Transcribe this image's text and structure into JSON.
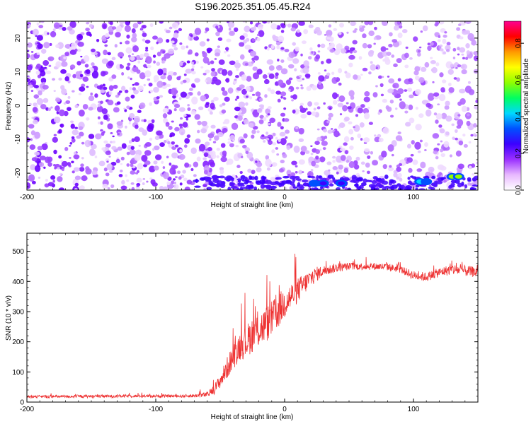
{
  "figure": {
    "title": "S196.2025.351.05.45.R24"
  },
  "chart_data": [
    {
      "type": "heatmap",
      "xlabel": "Height of straight line (km)",
      "ylabel": "Frequency (Hz)",
      "xlim": [
        -200,
        150
      ],
      "ylim": [
        -25,
        25
      ],
      "x_ticks": [
        -200,
        -100,
        0,
        100
      ],
      "y_ticks": [
        -20,
        -10,
        0,
        10,
        20
      ],
      "colorbar": {
        "label": "Normalized spectral amplitude",
        "range": [
          0,
          0.92
        ],
        "ticks": [
          0.0,
          0.2,
          0.4,
          0.6,
          0.8
        ],
        "tick_labels": [
          "0.0",
          "0.2",
          "0.4",
          "0.6",
          "0.8"
        ],
        "colormap": [
          "#ffffff",
          "#e8b8ff",
          "#9a30ff",
          "#3c00ff",
          "#0050ff",
          "#00d8ff",
          "#00ff60",
          "#90ff00",
          "#ffff00",
          "#ff9900",
          "#ff0000",
          "#ff0090"
        ]
      },
      "hotspots": [
        {
          "x": 23,
          "y": -23,
          "value": 0.3
        },
        {
          "x": 30,
          "y": -23,
          "value": 0.25
        },
        {
          "x": 44,
          "y": -23,
          "value": 0.22
        },
        {
          "x": 105,
          "y": -22.5,
          "value": 0.45
        },
        {
          "x": 110,
          "y": -22.5,
          "value": 0.35
        },
        {
          "x": 130,
          "y": -21,
          "value": 0.62
        },
        {
          "x": 135,
          "y": -21,
          "value": 0.55
        }
      ]
    },
    {
      "type": "line",
      "xlabel": "Height of straight line (km)",
      "ylabel": "SNR (10 * v/v)",
      "xlim": [
        -200,
        150
      ],
      "ylim": [
        0,
        560
      ],
      "x_ticks": [
        -200,
        -100,
        0,
        100
      ],
      "y_ticks": [
        0,
        100,
        200,
        300,
        400,
        500
      ],
      "series": [
        {
          "color": "#ee3333",
          "x": [
            -200,
            -180,
            -160,
            -140,
            -120,
            -100,
            -80,
            -70,
            -60,
            -55,
            -50,
            -45,
            -40,
            -35,
            -30,
            -25,
            -20,
            -15,
            -10,
            -5,
            0,
            5,
            10,
            15,
            20,
            25,
            30,
            40,
            50,
            60,
            70,
            80,
            90,
            100,
            110,
            120,
            130,
            140,
            150
          ],
          "y": [
            18,
            18,
            19,
            19,
            20,
            20,
            20,
            21,
            25,
            40,
            70,
            110,
            150,
            185,
            200,
            225,
            240,
            255,
            275,
            300,
            330,
            350,
            370,
            390,
            410,
            425,
            435,
            445,
            450,
            450,
            450,
            448,
            440,
            420,
            415,
            430,
            440,
            435,
            430
          ],
          "noise_amplitude": [
            8,
            8,
            8,
            8,
            8,
            8,
            8,
            10,
            15,
            25,
            40,
            60,
            70,
            80,
            90,
            100,
            100,
            100,
            100,
            95,
            90,
            80,
            70,
            60,
            50,
            40,
            30,
            25,
            20,
            20,
            20,
            20,
            20,
            25,
            25,
            25,
            30,
            30,
            30
          ]
        }
      ]
    }
  ]
}
